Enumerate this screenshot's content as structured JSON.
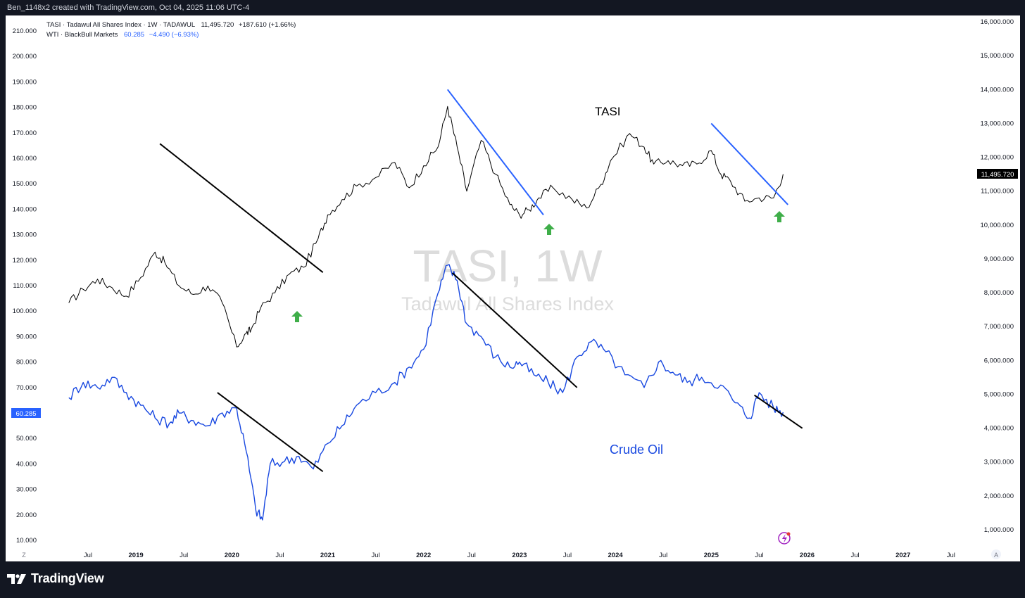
{
  "header": {
    "caption": "Ben_1148x2 created with TradingView.com, Oct 04, 2025 11:06 UTC-4"
  },
  "legend": {
    "tasi_label": "TASI · Tadawul All Shares Index · 1W · TADAWUL",
    "tasi_value": "11,495.720",
    "tasi_change": "+187.610 (+1.66%)",
    "wti_label": "WTI · BlackBull Markets",
    "wti_value": "60.285",
    "wti_change": "−4.490 (−6.93%)"
  },
  "watermark": {
    "title": "TASI, 1W",
    "subtitle": "Tadawul All Shares Index"
  },
  "annotations": {
    "tasi": "TASI",
    "crude": "Crude Oil"
  },
  "price_tags": {
    "tasi": "11,495.720",
    "wti": "60.285"
  },
  "axis_buttons": {
    "left": "Z",
    "right": "A"
  },
  "footer": {
    "brand": "TradingView"
  },
  "colors": {
    "tasi_line": "#000000",
    "wti_line": "#1848e0",
    "trend_black": "#000000",
    "trend_blue": "#2962ff",
    "arrow_green": "#3fae49"
  },
  "chart_data": {
    "type": "line",
    "x_ticks": [
      "Jul",
      "2019",
      "Jul",
      "2020",
      "Jul",
      "2021",
      "Jul",
      "2022",
      "Jul",
      "2023",
      "Jul",
      "2024",
      "Jul",
      "2025",
      "Jul",
      "2026",
      "Jul",
      "2027",
      "Jul"
    ],
    "left_axis": {
      "ticks": [
        "210.000",
        "200.000",
        "190.000",
        "180.000",
        "170.000",
        "160.000",
        "150.000",
        "140.000",
        "130.000",
        "120.000",
        "110.000",
        "100.000",
        "90.000",
        "80.000",
        "70.000",
        "60.000",
        "50.000",
        "40.000",
        "30.000",
        "20.000",
        "10.000"
      ],
      "ylim": [
        10,
        210
      ]
    },
    "right_axis": {
      "ticks": [
        "16,000.000",
        "15,000.000",
        "14,000.000",
        "13,000.000",
        "12,000.000",
        "11,000.000",
        "10,000.000",
        "9,000.000",
        "8,000.000",
        "7,000.000",
        "6,000.000",
        "5,000.000",
        "4,000.000",
        "3,000.000",
        "2,000.000",
        "1,000.000"
      ],
      "ylim": [
        1000,
        16000
      ]
    },
    "series": [
      {
        "name": "TASI",
        "axis": "right",
        "x": [
          2018.3,
          2018.45,
          2018.6,
          2018.75,
          2018.9,
          2019.05,
          2019.2,
          2019.3,
          2019.45,
          2019.6,
          2019.75,
          2019.9,
          2020.05,
          2020.15,
          2020.2,
          2020.3,
          2020.45,
          2020.6,
          2020.75,
          2020.9,
          2021.0,
          2021.15,
          2021.3,
          2021.5,
          2021.7,
          2021.85,
          2022.0,
          2022.15,
          2022.25,
          2022.35,
          2022.45,
          2022.6,
          2022.75,
          2022.9,
          2023.0,
          2023.1,
          2023.2,
          2023.35,
          2023.55,
          2023.7,
          2023.85,
          2023.95,
          2024.15,
          2024.3,
          2024.4,
          2024.55,
          2024.7,
          2024.85,
          2025.0,
          2025.1,
          2025.2,
          2025.35,
          2025.5,
          2025.65,
          2025.75
        ],
        "y": [
          7700,
          8100,
          8400,
          8150,
          7900,
          8450,
          9200,
          8900,
          8200,
          7950,
          8200,
          7700,
          6400,
          6800,
          6900,
          7550,
          8000,
          8550,
          8750,
          9600,
          10300,
          10750,
          11150,
          11400,
          11850,
          11100,
          11750,
          12300,
          13500,
          12300,
          11000,
          12500,
          11500,
          10600,
          10300,
          10450,
          10800,
          11100,
          10750,
          10500,
          11200,
          11900,
          12700,
          12300,
          11800,
          11900,
          11750,
          11800,
          12200,
          11500,
          11300,
          10700,
          10800,
          10800,
          11500
        ]
      },
      {
        "name": "WTI",
        "axis": "left",
        "x": [
          2018.3,
          2018.45,
          2018.6,
          2018.75,
          2018.9,
          2019.05,
          2019.2,
          2019.35,
          2019.45,
          2019.6,
          2019.75,
          2019.9,
          2020.05,
          2020.15,
          2020.25,
          2020.32,
          2020.4,
          2020.55,
          2020.7,
          2020.85,
          2021.0,
          2021.15,
          2021.3,
          2021.5,
          2021.7,
          2021.85,
          2022.0,
          2022.15,
          2022.25,
          2022.35,
          2022.45,
          2022.6,
          2022.75,
          2022.9,
          2023.0,
          2023.15,
          2023.3,
          2023.45,
          2023.6,
          2023.75,
          2023.9,
          2024.1,
          2024.3,
          2024.45,
          2024.6,
          2024.75,
          2024.9,
          2025.1,
          2025.25,
          2025.4,
          2025.5,
          2025.65,
          2025.75
        ],
        "y": [
          66,
          72,
          70,
          74,
          68,
          63,
          58,
          56,
          60,
          57,
          55,
          60,
          62,
          45,
          22,
          18,
          40,
          41,
          43,
          38,
          48,
          55,
          63,
          68,
          72,
          78,
          85,
          107,
          118,
          112,
          95,
          90,
          82,
          78,
          80,
          75,
          72,
          68,
          82,
          88,
          84,
          75,
          70,
          80,
          76,
          72,
          74,
          71,
          64,
          58,
          68,
          62,
          60.285
        ]
      }
    ],
    "trendlines": [
      {
        "color": "black",
        "from": [
          "2019.25",
          12400
        ],
        "to": [
          "2020.95",
          8600
        ]
      },
      {
        "color": "blue",
        "from": [
          "2022.25",
          14000
        ],
        "to": [
          "2023.25",
          10300
        ]
      },
      {
        "color": "blue",
        "from": [
          "2025.0",
          13000
        ],
        "to": [
          "2025.8",
          10600
        ]
      },
      {
        "color": "black",
        "from": [
          "2019.85",
          68
        ],
        "to": [
          "2020.95",
          37
        ]
      },
      {
        "color": "black",
        "from": [
          "2022.3",
          115
        ],
        "to": [
          "2023.6",
          70
        ]
      },
      {
        "color": "black",
        "from": [
          "2025.45",
          67
        ],
        "to": [
          "2025.95",
          54
        ]
      }
    ]
  }
}
